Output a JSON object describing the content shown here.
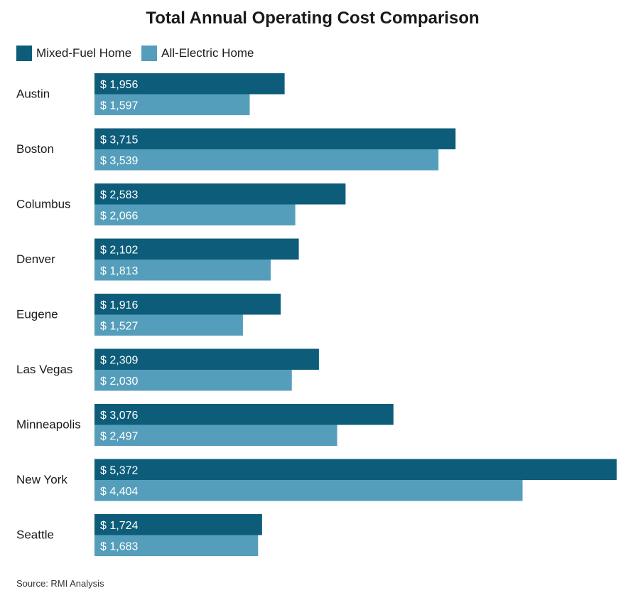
{
  "colors": {
    "mixed": "#0d5d7a",
    "electric": "#559ebb",
    "label_text": "#ffffff",
    "text": "#1a1a1a"
  },
  "source": "Source: RMI Analysis",
  "chart_data": {
    "type": "bar",
    "orientation": "horizontal",
    "title": "Total Annual Operating Cost Comparison",
    "xlabel": "",
    "ylabel": "",
    "legend_position": "top-left",
    "grid": false,
    "xlim": [
      0,
      5372
    ],
    "categories": [
      "Austin",
      "Boston",
      "Columbus",
      "Denver",
      "Eugene",
      "Las Vegas",
      "Minneapolis",
      "New York",
      "Seattle"
    ],
    "series": [
      {
        "name": "Mixed-Fuel Home",
        "color": "#0d5d7a",
        "values": [
          1956,
          3715,
          2583,
          2102,
          1916,
          2309,
          3076,
          5372,
          1724
        ],
        "labels": [
          "$ 1,956",
          "$ 3,715",
          "$ 2,583",
          "$ 2,102",
          "$ 1,916",
          "$ 2,309",
          "$ 3,076",
          "$ 5,372",
          "$ 1,724"
        ]
      },
      {
        "name": "All-Electric Home",
        "color": "#559ebb",
        "values": [
          1597,
          3539,
          2066,
          1813,
          1527,
          2030,
          2497,
          4404,
          1683
        ],
        "labels": [
          "$ 1,597",
          "$ 3,539",
          "$ 2,066",
          "$ 1,813",
          "$ 1,527",
          "$ 2,030",
          "$ 2,497",
          "$ 4,404",
          "$ 1,683"
        ]
      }
    ]
  }
}
